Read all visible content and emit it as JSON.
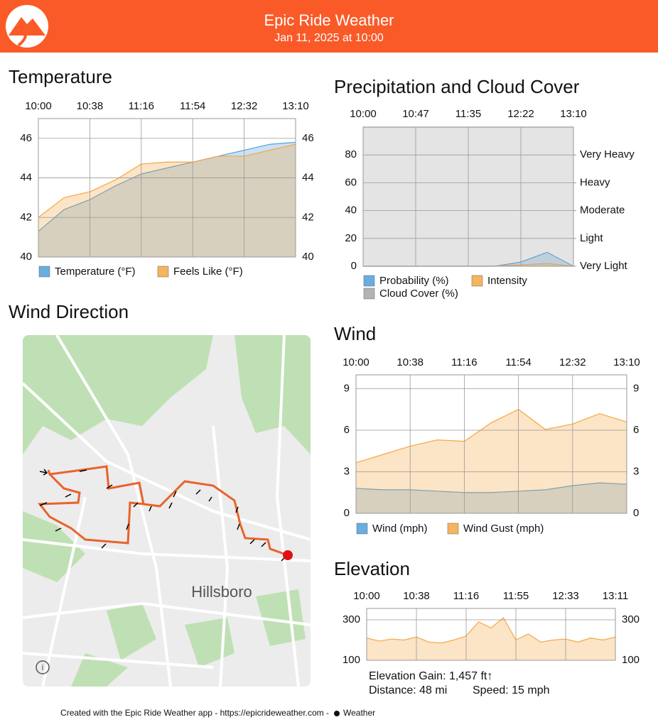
{
  "header": {
    "title": "Epic Ride Weather",
    "subtitle": "Jan 11, 2025 at 10:00"
  },
  "map": {
    "title": "Wind Direction",
    "label": "Hillsboro"
  },
  "footer": {
    "text": "Created with the Epic Ride Weather app - https://epicrideweather.com -",
    "brand": "Weather"
  },
  "chart_data": [
    {
      "type": "area",
      "title": "Temperature",
      "categories": [
        "10:00",
        null,
        "10:38",
        null,
        "11:16",
        null,
        "11:54",
        null,
        "12:32",
        null,
        "13:10"
      ],
      "series": [
        {
          "name": "Temperature (°F)",
          "color": "#4f9fdc",
          "values": [
            41.3,
            42.4,
            42.9,
            43.6,
            44.2,
            44.5,
            44.8,
            45.1,
            45.4,
            45.7,
            45.8
          ]
        },
        {
          "name": "Feels Like (°F)",
          "color": "#f5a742",
          "values": [
            42.0,
            43.0,
            43.3,
            43.9,
            44.7,
            44.8,
            44.8,
            45.1,
            45.1,
            45.4,
            45.7
          ]
        }
      ],
      "ylim": [
        40,
        47
      ],
      "yticks": [
        40,
        42,
        44,
        46
      ],
      "mirror_y_axis": true,
      "grid": true
    },
    {
      "type": "area",
      "title": "Precipitation and Cloud Cover",
      "categories": [
        "10:00",
        null,
        "10:47",
        null,
        "11:35",
        null,
        "12:22",
        null,
        "13:10"
      ],
      "series": [
        {
          "name": "Probability (%)",
          "color": "#4f9fdc",
          "values": [
            0,
            0,
            0,
            0,
            0,
            0,
            3,
            10,
            0
          ]
        },
        {
          "name": "Intensity",
          "color": "#f5a742",
          "values": [
            0,
            0,
            0,
            0,
            0,
            0,
            1,
            2,
            0
          ]
        },
        {
          "name": "Cloud Cover (%)",
          "color": "#a6a6a6",
          "values": [
            100,
            100,
            100,
            100,
            100,
            100,
            100,
            100,
            100
          ]
        }
      ],
      "ylim": [
        0,
        100
      ],
      "yticks": [
        0,
        20,
        40,
        60,
        80
      ],
      "y2lim": [
        0,
        100
      ],
      "y2ticks": [
        {
          "value": 0,
          "label": "Very Light"
        },
        {
          "value": 20,
          "label": "Light"
        },
        {
          "value": 40,
          "label": "Moderate"
        },
        {
          "value": 60,
          "label": "Heavy"
        },
        {
          "value": 80,
          "label": "Very Heavy"
        }
      ],
      "grid": true
    },
    {
      "type": "area",
      "title": "Wind",
      "categories": [
        "10:00",
        null,
        "10:38",
        null,
        "11:16",
        null,
        "11:54",
        null,
        "12:32",
        null,
        "13:10"
      ],
      "series": [
        {
          "name": "Wind (mph)",
          "color": "#4f9fdc",
          "values": [
            1.8,
            1.7,
            1.7,
            1.6,
            1.5,
            1.5,
            1.6,
            1.7,
            2.0,
            2.2,
            2.1
          ]
        },
        {
          "name": "Wind Gust (mph)",
          "color": "#f5a742",
          "values": [
            3.65,
            4.25,
            4.85,
            5.3,
            5.2,
            6.55,
            7.5,
            6.05,
            6.45,
            7.2,
            6.6
          ]
        }
      ],
      "ylim": [
        0,
        10
      ],
      "yticks": [
        0,
        3,
        6,
        9
      ],
      "mirror_y_axis": true,
      "grid": true
    },
    {
      "type": "area",
      "title": "Elevation",
      "categories": [
        "10:00",
        null,
        null,
        null,
        "10:38",
        null,
        null,
        null,
        "11:16",
        null,
        null,
        null,
        "11:55",
        null,
        null,
        null,
        "12:33",
        null,
        null,
        null,
        "13:11"
      ],
      "series": [
        {
          "name": null,
          "color": "#f5a742",
          "values": [
            210,
            195,
            205,
            200,
            215,
            190,
            185,
            200,
            220,
            290,
            260,
            310,
            200,
            230,
            190,
            200,
            205,
            190,
            210,
            200,
            215
          ]
        }
      ],
      "ylim": [
        100,
        356
      ],
      "yticks": [
        100,
        300
      ],
      "mirror_y_axis": true,
      "grid": true,
      "annotations": [
        "Elevation Gain: 1,457 ft↑",
        "Distance: 48 mi",
        "Speed: 15 mph"
      ]
    }
  ]
}
